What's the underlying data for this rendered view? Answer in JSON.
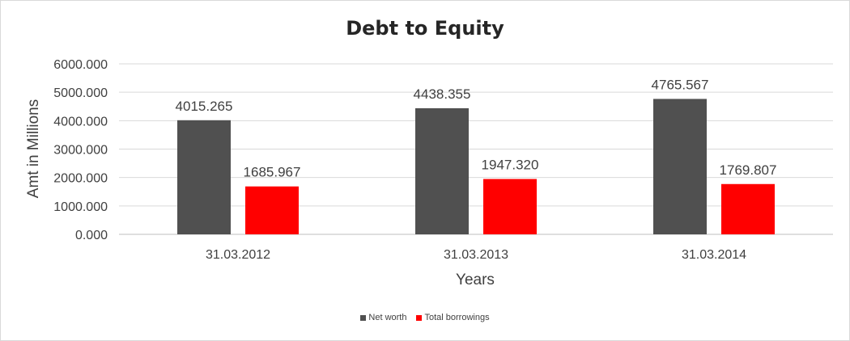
{
  "chart_data": {
    "type": "bar",
    "title": "Debt to Equity",
    "xlabel": "Years",
    "ylabel": "Amt in Millions",
    "categories": [
      "31.03.2012",
      "31.03.2013",
      "31.03.2014"
    ],
    "series": [
      {
        "name": "Net worth",
        "color": "#505050",
        "values": [
          4015.265,
          4438.355,
          4765.567
        ]
      },
      {
        "name": "Total borrowings",
        "color": "#ff0000",
        "values": [
          1685.967,
          1947.32,
          1769.807
        ]
      }
    ],
    "ylim": [
      0,
      6000
    ],
    "yticks": [
      "0.000",
      "1000.000",
      "2000.000",
      "3000.000",
      "4000.000",
      "5000.000",
      "6000.000"
    ],
    "data_labels": [
      [
        "4015.265",
        "4438.355",
        "4765.567"
      ],
      [
        "1685.967",
        "1947.320",
        "1769.807"
      ]
    ],
    "grid": true,
    "legend": "bottom"
  }
}
